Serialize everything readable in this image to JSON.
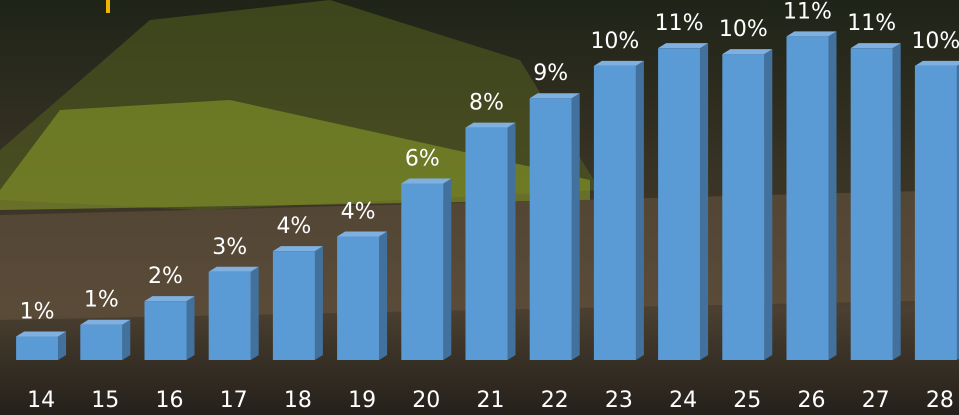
{
  "chart_data": {
    "type": "bar3d",
    "categories": [
      "14",
      "15",
      "16",
      "17",
      "18",
      "19",
      "20",
      "21",
      "22",
      "23",
      "24",
      "25",
      "26",
      "27",
      "28"
    ],
    "values": [
      0.8,
      1.2,
      2.0,
      3.0,
      3.7,
      4.2,
      6.0,
      7.9,
      8.9,
      10.0,
      10.6,
      10.4,
      11.0,
      10.6,
      10.0
    ],
    "value_labels": [
      "1%",
      "1%",
      "2%",
      "3%",
      "4%",
      "4%",
      "6%",
      "8%",
      "9%",
      "10%",
      "11%",
      "10%",
      "11%",
      "11%",
      "10%"
    ],
    "color": "#5b9bd5",
    "ylim": [
      0,
      12
    ]
  }
}
